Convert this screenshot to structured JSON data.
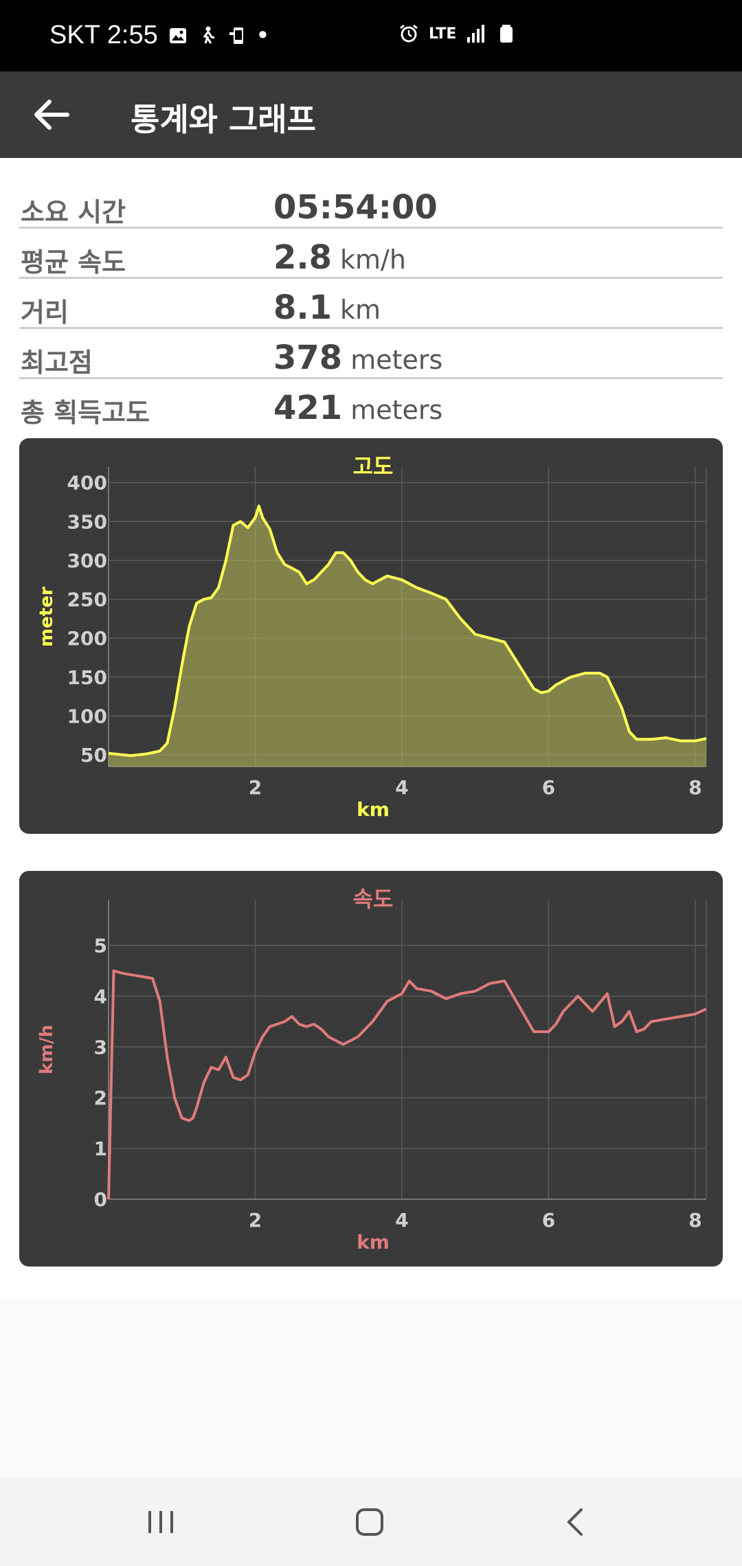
{
  "status_bar": {
    "carrier_time": "SKT 2:55",
    "network": "LTE",
    "dot": "•"
  },
  "app_bar": {
    "title": "통계와 그래프"
  },
  "stats": [
    {
      "label": "소요 시간",
      "value": "05:54:00",
      "unit": ""
    },
    {
      "label": "평균 속도",
      "value": "2.8",
      "unit": "km/h"
    },
    {
      "label": "거리",
      "value": "8.1",
      "unit": "km"
    },
    {
      "label": "최고점",
      "value": "378",
      "unit": "meters"
    },
    {
      "label": "총 획득고도",
      "value": "421",
      "unit": "meters"
    }
  ],
  "colors": {
    "elevation": "#ffff55",
    "speed": "#e07b7b",
    "chart_bg": "#3a3a3a"
  },
  "chart_data": [
    {
      "type": "area",
      "title": "고도",
      "xlabel": "km",
      "ylabel": "meter",
      "xlim": [
        0,
        8.15
      ],
      "ylim": [
        35,
        420
      ],
      "xticks": [
        2,
        4,
        6,
        8
      ],
      "yticks": [
        50,
        100,
        150,
        200,
        250,
        300,
        350,
        400
      ],
      "grid": true,
      "x": [
        0.0,
        0.2,
        0.3,
        0.5,
        0.7,
        0.8,
        0.9,
        1.0,
        1.1,
        1.2,
        1.3,
        1.4,
        1.5,
        1.6,
        1.7,
        1.8,
        1.9,
        2.0,
        2.05,
        2.1,
        2.2,
        2.3,
        2.4,
        2.5,
        2.6,
        2.7,
        2.8,
        3.0,
        3.1,
        3.2,
        3.3,
        3.4,
        3.5,
        3.6,
        3.7,
        3.8,
        4.0,
        4.2,
        4.4,
        4.6,
        4.8,
        5.0,
        5.2,
        5.4,
        5.6,
        5.8,
        5.9,
        6.0,
        6.1,
        6.3,
        6.5,
        6.7,
        6.8,
        6.9,
        7.0,
        7.1,
        7.2,
        7.4,
        7.6,
        7.8,
        8.0,
        8.15
      ],
      "y": [
        52,
        50,
        49,
        51,
        55,
        65,
        110,
        165,
        215,
        245,
        250,
        252,
        265,
        300,
        345,
        350,
        342,
        355,
        370,
        355,
        340,
        310,
        295,
        290,
        285,
        270,
        275,
        295,
        310,
        310,
        300,
        285,
        275,
        270,
        275,
        280,
        275,
        265,
        258,
        250,
        225,
        205,
        200,
        195,
        165,
        135,
        130,
        132,
        140,
        150,
        155,
        155,
        150,
        130,
        110,
        80,
        70,
        70,
        72,
        68,
        68,
        71
      ]
    },
    {
      "type": "line",
      "title": "속도",
      "xlabel": "km",
      "ylabel": "km/h",
      "xlim": [
        0,
        8.15
      ],
      "ylim": [
        0,
        5.9
      ],
      "xticks": [
        2,
        4,
        6,
        8
      ],
      "yticks": [
        0,
        1,
        2,
        3,
        4,
        5
      ],
      "grid": true,
      "x": [
        0.0,
        0.07,
        0.2,
        0.4,
        0.6,
        0.7,
        0.8,
        0.9,
        1.0,
        1.1,
        1.15,
        1.2,
        1.3,
        1.4,
        1.5,
        1.6,
        1.7,
        1.8,
        1.9,
        2.0,
        2.1,
        2.2,
        2.3,
        2.4,
        2.5,
        2.6,
        2.7,
        2.8,
        2.9,
        3.0,
        3.2,
        3.4,
        3.6,
        3.8,
        4.0,
        4.1,
        4.2,
        4.4,
        4.6,
        4.8,
        5.0,
        5.2,
        5.4,
        5.6,
        5.8,
        6.0,
        6.1,
        6.2,
        6.4,
        6.6,
        6.8,
        6.9,
        7.0,
        7.1,
        7.2,
        7.3,
        7.4,
        7.6,
        7.8,
        8.0,
        8.15
      ],
      "y": [
        0,
        4.5,
        4.45,
        4.4,
        4.35,
        3.9,
        2.8,
        2.0,
        1.6,
        1.55,
        1.6,
        1.8,
        2.3,
        2.6,
        2.55,
        2.8,
        2.4,
        2.35,
        2.45,
        2.9,
        3.2,
        3.4,
        3.45,
        3.5,
        3.6,
        3.45,
        3.4,
        3.45,
        3.35,
        3.2,
        3.05,
        3.2,
        3.5,
        3.9,
        4.05,
        4.3,
        4.15,
        4.1,
        3.95,
        4.05,
        4.1,
        4.25,
        4.3,
        3.8,
        3.3,
        3.3,
        3.45,
        3.7,
        4.0,
        3.7,
        4.05,
        3.4,
        3.5,
        3.7,
        3.3,
        3.35,
        3.5,
        3.55,
        3.6,
        3.65,
        3.75
      ]
    }
  ]
}
